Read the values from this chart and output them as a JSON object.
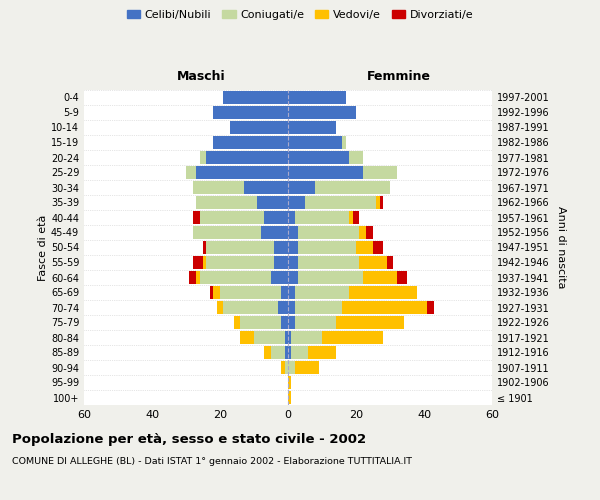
{
  "age_groups": [
    "100+",
    "95-99",
    "90-94",
    "85-89",
    "80-84",
    "75-79",
    "70-74",
    "65-69",
    "60-64",
    "55-59",
    "50-54",
    "45-49",
    "40-44",
    "35-39",
    "30-34",
    "25-29",
    "20-24",
    "15-19",
    "10-14",
    "5-9",
    "0-4"
  ],
  "birth_years": [
    "≤ 1901",
    "1902-1906",
    "1907-1911",
    "1912-1916",
    "1917-1921",
    "1922-1926",
    "1927-1931",
    "1932-1936",
    "1937-1941",
    "1942-1946",
    "1947-1951",
    "1952-1956",
    "1957-1961",
    "1962-1966",
    "1967-1971",
    "1972-1976",
    "1977-1981",
    "1982-1986",
    "1987-1991",
    "1992-1996",
    "1997-2001"
  ],
  "males": {
    "celibi": [
      0,
      0,
      0,
      1,
      1,
      2,
      3,
      2,
      5,
      4,
      4,
      8,
      7,
      9,
      13,
      27,
      24,
      22,
      17,
      22,
      19
    ],
    "coniugati": [
      0,
      0,
      1,
      4,
      9,
      12,
      16,
      18,
      21,
      20,
      20,
      20,
      19,
      18,
      15,
      3,
      2,
      0,
      0,
      0,
      0
    ],
    "vedovi": [
      0,
      0,
      1,
      2,
      4,
      2,
      2,
      2,
      1,
      1,
      0,
      0,
      0,
      0,
      0,
      0,
      0,
      0,
      0,
      0,
      0
    ],
    "divorziati": [
      0,
      0,
      0,
      0,
      0,
      0,
      0,
      1,
      2,
      3,
      1,
      0,
      2,
      0,
      0,
      0,
      0,
      0,
      0,
      0,
      0
    ]
  },
  "females": {
    "nubili": [
      0,
      0,
      0,
      1,
      1,
      2,
      2,
      2,
      3,
      3,
      3,
      3,
      2,
      5,
      8,
      22,
      18,
      16,
      14,
      20,
      17
    ],
    "coniugate": [
      0,
      0,
      2,
      5,
      9,
      12,
      14,
      16,
      19,
      18,
      17,
      18,
      16,
      21,
      22,
      10,
      4,
      1,
      0,
      0,
      0
    ],
    "vedove": [
      1,
      1,
      7,
      8,
      18,
      20,
      25,
      20,
      10,
      8,
      5,
      2,
      1,
      1,
      0,
      0,
      0,
      0,
      0,
      0,
      0
    ],
    "divorziate": [
      0,
      0,
      0,
      0,
      0,
      0,
      2,
      0,
      3,
      2,
      3,
      2,
      2,
      1,
      0,
      0,
      0,
      0,
      0,
      0,
      0
    ]
  },
  "colors": {
    "celibi": "#4472c4",
    "coniugati": "#c5d9a0",
    "vedovi": "#ffc000",
    "divorziati": "#cc0000"
  },
  "xlim": 60,
  "title": "Popolazione per età, sesso e stato civile - 2002",
  "subtitle": "COMUNE DI ALLEGHE (BL) - Dati ISTAT 1° gennaio 2002 - Elaborazione TUTTITALIA.IT",
  "ylabel_left": "Fasce di età",
  "ylabel_right": "Anni di nascita",
  "header_left": "Maschi",
  "header_right": "Femmine",
  "bg_color": "#f0f0eb",
  "plot_bg": "#ffffff"
}
